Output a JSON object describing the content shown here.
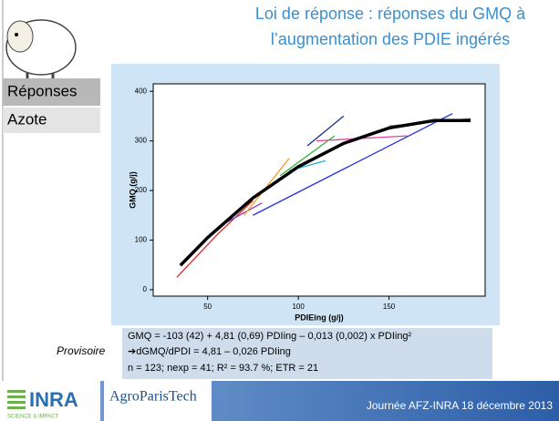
{
  "header": {
    "title_line1": "Loi de réponse : réponses du GMQ à",
    "title_line2": "l’augmentation des PDIE ingérés"
  },
  "menu": [
    "Réponses",
    "Azote"
  ],
  "chart_data": {
    "type": "line",
    "xlabel": "PDIEing (g/j)",
    "ylabel": "GMQ (g/j)",
    "xlim": [
      20,
      203
    ],
    "xticks": [
      50,
      100,
      150
    ],
    "ylim": [
      -13,
      415
    ],
    "yticks": [
      0,
      100,
      200,
      300,
      400
    ],
    "series": [
      {
        "color": "#000000",
        "x": [
          35,
          50,
          75,
          100,
          125,
          150,
          175,
          195
        ],
        "values": [
          49,
          105,
          185,
          248,
          295,
          326,
          341,
          341
        ]
      },
      {
        "color": "#e02020",
        "x": [
          33,
          55,
          75
        ],
        "values": [
          25,
          110,
          180
        ]
      },
      {
        "color": "#8a3cc8",
        "x": [
          60,
          80
        ],
        "values": [
          135,
          175
        ]
      },
      {
        "color": "#2030e0",
        "x": [
          75,
          185
        ],
        "values": [
          150,
          355
        ]
      },
      {
        "color": "#f0a020",
        "x": [
          70,
          95
        ],
        "values": [
          150,
          265
        ]
      },
      {
        "color": "#30b030",
        "x": [
          90,
          120
        ],
        "values": [
          230,
          310
        ]
      },
      {
        "color": "#1a2a90",
        "x": [
          105,
          125
        ],
        "values": [
          290,
          350
        ]
      },
      {
        "color": "#e040a0",
        "x": [
          110,
          160
        ],
        "values": [
          300,
          310
        ]
      },
      {
        "color": "#20b0d0",
        "x": [
          95,
          115
        ],
        "values": [
          240,
          260
        ]
      },
      {
        "color": "#808080",
        "x": [
          150,
          195
        ],
        "values": [
          330,
          345
        ]
      }
    ]
  },
  "formula": {
    "lines": [
      "GMQ = -103 (42) + 4,81 (0,69) PDIing – 0,013 (0,002) x PDIing²",
      "➔dGMQ/dPDI = 4,81 – 0,026 PDIing",
      "n = 123; nexp = 41; R² = 93.7 %; ETR = 21"
    ],
    "note": "Provisoire"
  },
  "footer": {
    "inra": "INRA",
    "inra_sub": "SCIENCE & IMPACT",
    "agro": "AgroParisTech",
    "event": "Journée AFZ-INRA 18 décembre 2013"
  }
}
